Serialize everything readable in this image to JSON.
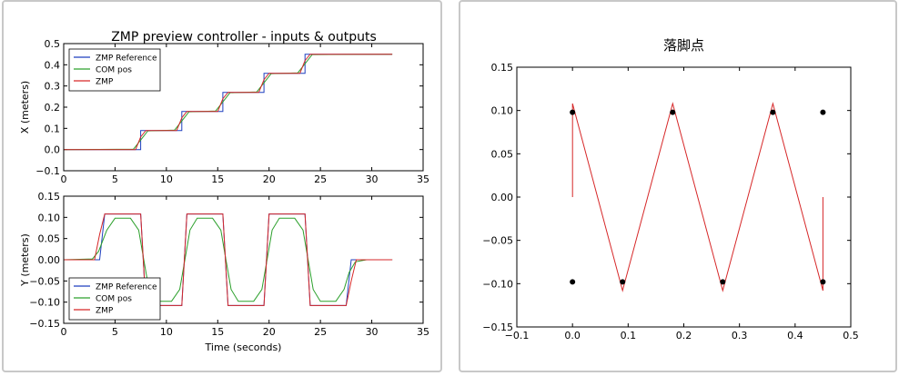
{
  "chart_data": [
    {
      "type": "line",
      "title": "ZMP preview controller - inputs & outputs",
      "subplots": [
        {
          "ylabel": "X (meters)",
          "xlabel": "",
          "xlim": [
            0,
            35
          ],
          "ylim": [
            -0.1,
            0.5
          ],
          "xticks": [
            "0",
            "5",
            "10",
            "15",
            "20",
            "25",
            "30",
            "35"
          ],
          "yticks": [
            "−0.1",
            "0.0",
            "0.1",
            "0.2",
            "0.3",
            "0.4",
            "0.5"
          ],
          "legend": [
            "ZMP Reference",
            "COM pos",
            "ZMP"
          ],
          "legend_position": "upper left",
          "series": [
            {
              "name": "ZMP Reference",
              "color": "#1f3fbf",
              "x": [
                0,
                7.5,
                7.5,
                11.5,
                11.5,
                15.5,
                15.5,
                19.5,
                19.5,
                23.5,
                23.5,
                32
              ],
              "y": [
                0,
                0,
                0.09,
                0.09,
                0.18,
                0.18,
                0.27,
                0.27,
                0.36,
                0.36,
                0.45,
                0.45
              ]
            },
            {
              "name": "COM pos",
              "color": "#2ca02c",
              "x": [
                0,
                6.8,
                7.5,
                8.2,
                10.8,
                11.5,
                12.2,
                14.8,
                15.5,
                16.2,
                18.8,
                19.5,
                20.2,
                22.8,
                23.5,
                24.2,
                32
              ],
              "y": [
                0,
                0.002,
                0.045,
                0.088,
                0.092,
                0.135,
                0.178,
                0.182,
                0.225,
                0.268,
                0.272,
                0.315,
                0.358,
                0.362,
                0.405,
                0.448,
                0.45
              ]
            },
            {
              "name": "ZMP",
              "color": "#d62728",
              "x": [
                0,
                7.0,
                7.5,
                8.0,
                11.0,
                11.5,
                12.0,
                15.0,
                15.5,
                16.0,
                19.0,
                19.5,
                20.0,
                23.0,
                23.5,
                24.0,
                32
              ],
              "y": [
                0,
                0,
                0.06,
                0.09,
                0.09,
                0.15,
                0.18,
                0.18,
                0.24,
                0.27,
                0.27,
                0.33,
                0.36,
                0.36,
                0.42,
                0.45,
                0.45
              ]
            }
          ]
        },
        {
          "ylabel": "Y (meters)",
          "xlabel": "Time (seconds)",
          "xlim": [
            0,
            35
          ],
          "ylim": [
            -0.15,
            0.15
          ],
          "xticks": [
            "0",
            "5",
            "10",
            "15",
            "20",
            "25",
            "30",
            "35"
          ],
          "yticks": [
            "−0.15",
            "−0.10",
            "−0.05",
            "0.00",
            "0.05",
            "0.10",
            "0.15"
          ],
          "legend": [
            "ZMP Reference",
            "COM pos",
            "ZMP"
          ],
          "legend_position": "lower left",
          "series": [
            {
              "name": "ZMP Reference",
              "color": "#1f3fbf",
              "x": [
                0,
                3.5,
                4,
                7.5,
                8,
                11.5,
                12,
                15.5,
                16,
                19.5,
                20,
                23.5,
                24,
                27.5,
                28,
                32
              ],
              "y": [
                0,
                0,
                0.108,
                0.108,
                -0.108,
                -0.108,
                0.108,
                0.108,
                -0.108,
                -0.108,
                0.108,
                0.108,
                -0.108,
                -0.108,
                0,
                0
              ]
            },
            {
              "name": "COM pos",
              "color": "#2ca02c",
              "x": [
                0,
                2.8,
                3.4,
                4.2,
                5,
                6.5,
                7.3,
                7.8,
                8.3,
                9,
                10.5,
                11.3,
                11.8,
                12.3,
                13,
                14.5,
                15.3,
                15.8,
                16.3,
                17,
                18.5,
                19.3,
                19.8,
                20.3,
                21,
                22.5,
                23.3,
                23.8,
                24.3,
                25,
                26.5,
                27.3,
                27.8,
                28.4,
                29.5,
                32
              ],
              "y": [
                0,
                0.002,
                0.02,
                0.07,
                0.098,
                0.098,
                0.07,
                0,
                -0.07,
                -0.098,
                -0.098,
                -0.07,
                0,
                0.07,
                0.098,
                0.098,
                0.07,
                0,
                -0.07,
                -0.098,
                -0.098,
                -0.07,
                0,
                0.07,
                0.098,
                0.098,
                0.07,
                0,
                -0.07,
                -0.098,
                -0.098,
                -0.07,
                -0.03,
                -0.005,
                0,
                0
              ]
            },
            {
              "name": "ZMP",
              "color": "#d62728",
              "x": [
                0,
                3,
                3.5,
                4,
                7.5,
                8,
                11.5,
                12,
                15.5,
                16,
                19.5,
                20,
                23.5,
                24,
                27.5,
                28,
                28.5,
                32
              ],
              "y": [
                0,
                0,
                0.06,
                0.108,
                0.108,
                -0.108,
                -0.108,
                0.108,
                0.108,
                -0.108,
                -0.108,
                0.108,
                0.108,
                -0.108,
                -0.108,
                -0.05,
                0,
                0
              ]
            }
          ]
        }
      ]
    },
    {
      "type": "line",
      "title": "落脚点",
      "xlabel": "",
      "ylabel": "",
      "xlim": [
        -0.1,
        0.5
      ],
      "ylim": [
        -0.15,
        0.15
      ],
      "xticks": [
        "−0.1",
        "0.0",
        "0.1",
        "0.2",
        "0.3",
        "0.4",
        "0.5"
      ],
      "yticks": [
        "−0.15",
        "−0.10",
        "−0.05",
        "0.00",
        "0.05",
        "0.10",
        "0.15"
      ],
      "series": [
        {
          "color": "#d62728",
          "x": [
            0,
            0,
            0,
            0.09,
            0.18,
            0.27,
            0.36,
            0.45,
            0.45
          ],
          "y": [
            0,
            0.098,
            0.108,
            -0.108,
            0.108,
            -0.108,
            0.108,
            -0.108,
            0
          ]
        }
      ],
      "points": {
        "color": "#000000",
        "x": [
          0,
          0,
          0.09,
          0.18,
          0.27,
          0.36,
          0.45,
          0.45
        ],
        "y": [
          0.098,
          -0.098,
          -0.098,
          0.098,
          -0.098,
          0.098,
          0.098,
          -0.098
        ]
      }
    }
  ]
}
